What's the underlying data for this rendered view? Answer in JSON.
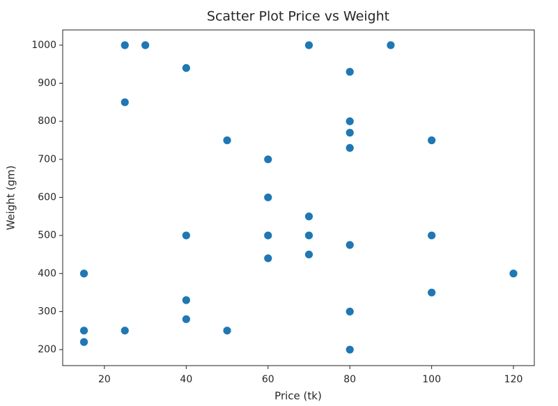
{
  "chart_data": {
    "type": "scatter",
    "title": "Scatter Plot Price vs Weight",
    "x_label": "Price (tk)",
    "y_label": "Weight (gm)",
    "color": "#1f77b4",
    "x": [
      25,
      30,
      70,
      90,
      40,
      80,
      25,
      80,
      80,
      80,
      50,
      100,
      60,
      60,
      70,
      40,
      60,
      70,
      100,
      80,
      70,
      60,
      15,
      120,
      100,
      40,
      80,
      40,
      15,
      25,
      50,
      15,
      80
    ],
    "values": [
      1000,
      1000,
      1000,
      1000,
      940,
      930,
      850,
      800,
      770,
      730,
      750,
      750,
      700,
      600,
      550,
      500,
      500,
      500,
      500,
      475,
      450,
      440,
      400,
      400,
      350,
      330,
      300,
      280,
      250,
      250,
      250,
      220,
      200
    ],
    "xlim": [
      9.8,
      125.1
    ],
    "xticks": [
      20,
      40,
      60,
      80,
      100,
      120
    ],
    "ylim": [
      158,
      1040
    ],
    "yticks": [
      200,
      300,
      400,
      500,
      600,
      700,
      800,
      900,
      1000
    ]
  }
}
